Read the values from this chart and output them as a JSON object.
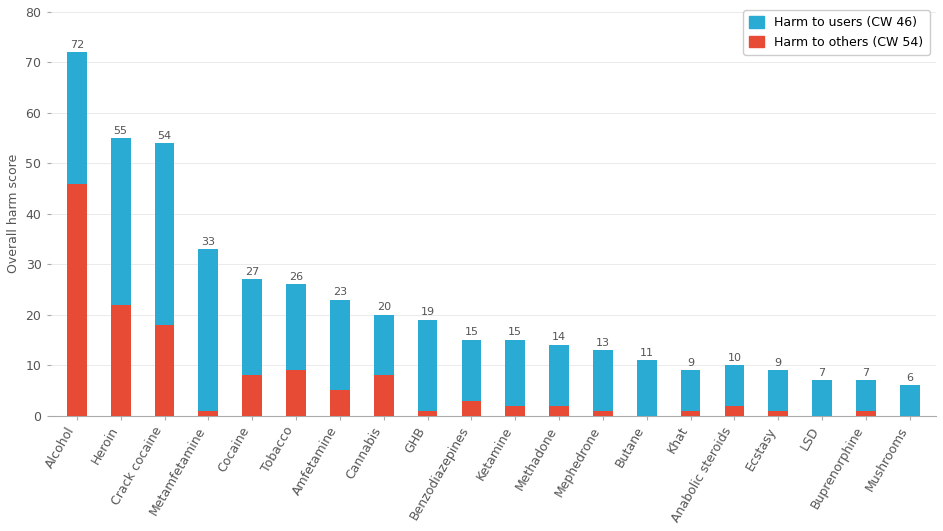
{
  "categories": [
    "Alcohol",
    "Heroin",
    "Crack cocaine",
    "Metamfetamine",
    "Cocaine",
    "Tobacco",
    "Amfetamine",
    "Cannabis",
    "GHB",
    "Benzodiazepines",
    "Ketamine",
    "Methadone",
    "Mephedrone",
    "Butane",
    "Khat",
    "Anabolic steroids",
    "Ecstasy",
    "LSD",
    "Buprenorphine",
    "Mushrooms"
  ],
  "totals": [
    72,
    55,
    54,
    33,
    27,
    26,
    23,
    20,
    19,
    15,
    15,
    14,
    13,
    11,
    9,
    10,
    9,
    7,
    7,
    6
  ],
  "harm_to_others": [
    46,
    22,
    18,
    1,
    8,
    9,
    5,
    8,
    1,
    3,
    2,
    2,
    1,
    0,
    1,
    2,
    1,
    0,
    1,
    0
  ],
  "color_users": "#29ABD4",
  "color_others": "#E84B35",
  "ylabel": "Overall harm score",
  "ylim": [
    0,
    80
  ],
  "yticks": [
    0,
    10,
    20,
    30,
    40,
    50,
    60,
    70,
    80
  ],
  "legend_users": "Harm to users (CW 46)",
  "legend_others": "Harm to others (CW 54)",
  "label_fontsize": 9,
  "tick_fontsize": 9,
  "total_label_fontsize": 8,
  "bar_width": 0.45,
  "xlabel_rotation": 60
}
